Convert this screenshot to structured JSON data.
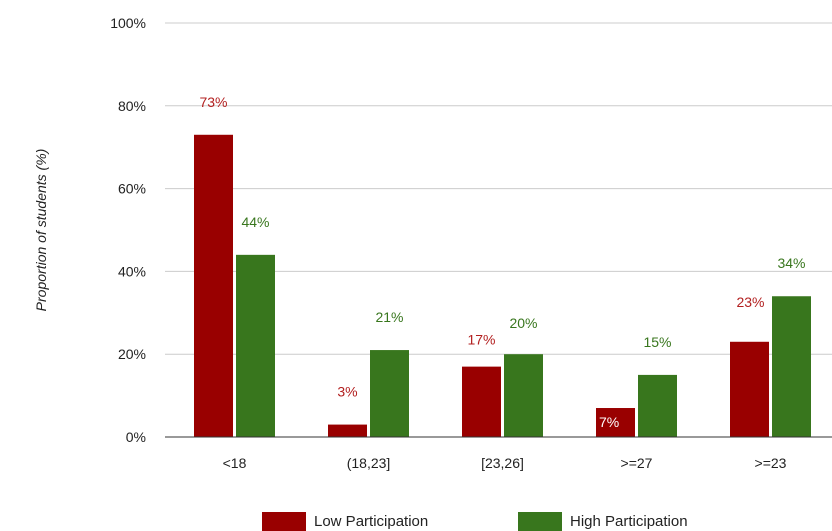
{
  "chart_data": {
    "type": "bar",
    "categories": [
      "<18",
      "(18,23]",
      "[23,26]",
      ">=27",
      ">=23"
    ],
    "series": [
      {
        "name": "Low Participation",
        "values": [
          73,
          3,
          17,
          7,
          23
        ],
        "labels": [
          "73%",
          "3%",
          "17%",
          "7%",
          "23%"
        ],
        "color": "#990000",
        "label_color": "#b21f1f"
      },
      {
        "name": "High Participation",
        "values": [
          44,
          21,
          20,
          15,
          34
        ],
        "labels": [
          "44%",
          "21%",
          "20%",
          "15%",
          "34%"
        ],
        "color": "#38761d",
        "label_color": "#38761d"
      }
    ],
    "ylabel": "Proportion of students (%)",
    "ylim": [
      0,
      100
    ],
    "yticks": [
      0,
      20,
      40,
      60,
      80,
      100
    ],
    "ytick_labels": [
      "0%",
      "20%",
      "40%",
      "60%",
      "80%",
      "100%"
    ],
    "grid": true,
    "legend": "bottom",
    "gridline_color": "#cccccc",
    "axis_color": "#333333"
  }
}
